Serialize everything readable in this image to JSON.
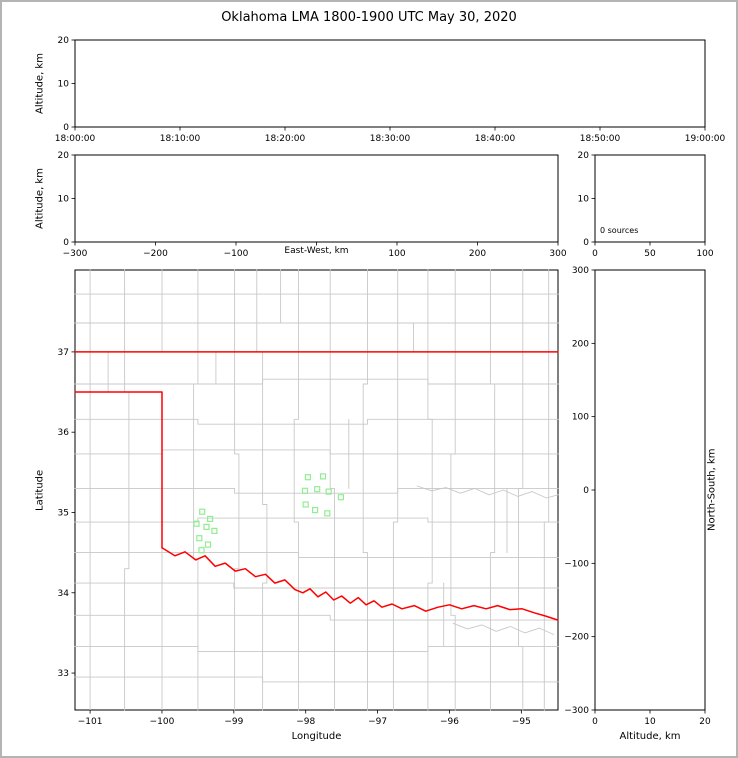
{
  "title": "Oklahoma LMA 1800-1900 UTC May 30, 2020",
  "colors": {
    "frame": "#b4b4b4",
    "axis": "#000000",
    "county": "#c8c8c8",
    "state": "#ff0000",
    "station": "#90EE90"
  },
  "chart_data": [
    {
      "id": "altitude-vs-time",
      "type": "scatter",
      "xlabel": "",
      "ylabel": "Altitude, km",
      "xlim": [
        0,
        3600
      ],
      "xticks": [
        0,
        600,
        1200,
        1800,
        2400,
        3000,
        3600
      ],
      "xtick_labels": [
        "18:00:00",
        "18:10:00",
        "18:20:00",
        "18:30:00",
        "18:40:00",
        "18:50:00",
        "19:00:00"
      ],
      "ylim": [
        0,
        20
      ],
      "yticks": [
        0,
        10,
        20
      ],
      "points": []
    },
    {
      "id": "altitude-vs-east-west",
      "type": "scatter",
      "xlabel": "East-West, km",
      "ylabel": "Altitude, km",
      "xlim": [
        -300,
        300
      ],
      "xticks": [
        -300,
        -200,
        -100,
        0,
        100,
        200,
        300
      ],
      "xtick_labels": [
        "−300",
        "−200",
        "−100",
        "",
        "100",
        "200",
        "300"
      ],
      "ylim": [
        0,
        20
      ],
      "yticks": [
        0,
        10,
        20
      ],
      "points": []
    },
    {
      "id": "source-histogram",
      "type": "line",
      "xlabel": "",
      "ylabel": "",
      "xlim": [
        0,
        100
      ],
      "xticks": [
        0,
        50,
        100
      ],
      "xtick_labels": [
        "0",
        "50",
        "100"
      ],
      "ylim": [
        0,
        20
      ],
      "yticks": [
        0,
        10,
        20
      ],
      "annotation": "0 sources",
      "points": []
    },
    {
      "id": "plan-view-map",
      "type": "scatter",
      "xlabel": "Longitude",
      "ylabel": "Latitude",
      "xlim": [
        -101.21,
        -94.49
      ],
      "xticks": [
        -101,
        -100,
        -99,
        -98,
        -97,
        -96,
        -95
      ],
      "xtick_labels": [
        "−101",
        "−100",
        "−99",
        "−98",
        "−97",
        "−96",
        "−95"
      ],
      "ylim": [
        32.54,
        38.02
      ],
      "yticks": [
        33,
        34,
        35,
        36,
        37
      ],
      "ytick_labels": [
        "33",
        "34",
        "35",
        "36",
        "37"
      ],
      "stations_lon_lat": [
        [
          -97.97,
          35.44
        ],
        [
          -97.76,
          35.45
        ],
        [
          -98.01,
          35.27
        ],
        [
          -97.84,
          35.29
        ],
        [
          -97.68,
          35.26
        ],
        [
          -97.51,
          35.19
        ],
        [
          -98.0,
          35.1
        ],
        [
          -97.87,
          35.03
        ],
        [
          -97.7,
          34.99
        ],
        [
          -99.44,
          35.01
        ],
        [
          -99.33,
          34.92
        ],
        [
          -99.52,
          34.86
        ],
        [
          -99.38,
          34.82
        ],
        [
          -99.27,
          34.77
        ],
        [
          -99.48,
          34.68
        ],
        [
          -99.36,
          34.6
        ],
        [
          -99.45,
          34.53
        ]
      ],
      "state_border": [
        [
          [
            -101.21,
            37.0
          ],
          [
            -94.49,
            37.0
          ]
        ],
        [
          [
            -101.21,
            36.5
          ],
          [
            -100.0,
            36.5
          ],
          [
            -100.0,
            34.56
          ]
        ],
        [
          [
            -100.0,
            34.56
          ],
          [
            -99.82,
            34.46
          ],
          [
            -99.68,
            34.51
          ],
          [
            -99.53,
            34.41
          ],
          [
            -99.4,
            34.46
          ],
          [
            -99.26,
            34.33
          ],
          [
            -99.12,
            34.37
          ],
          [
            -98.98,
            34.27
          ],
          [
            -98.84,
            34.3
          ],
          [
            -98.7,
            34.2
          ],
          [
            -98.56,
            34.23
          ],
          [
            -98.43,
            34.12
          ],
          [
            -98.29,
            34.16
          ],
          [
            -98.15,
            34.04
          ],
          [
            -98.04,
            34.0
          ],
          [
            -97.94,
            34.05
          ],
          [
            -97.83,
            33.95
          ],
          [
            -97.72,
            34.01
          ],
          [
            -97.61,
            33.91
          ],
          [
            -97.5,
            33.96
          ],
          [
            -97.38,
            33.87
          ],
          [
            -97.27,
            33.94
          ],
          [
            -97.16,
            33.85
          ],
          [
            -97.05,
            33.9
          ],
          [
            -96.94,
            33.82
          ],
          [
            -96.8,
            33.86
          ],
          [
            -96.66,
            33.8
          ],
          [
            -96.49,
            33.84
          ],
          [
            -96.33,
            33.77
          ],
          [
            -96.16,
            33.82
          ],
          [
            -96.0,
            33.85
          ],
          [
            -95.83,
            33.8
          ],
          [
            -95.66,
            33.84
          ],
          [
            -95.49,
            33.8
          ],
          [
            -95.33,
            33.84
          ],
          [
            -95.16,
            33.79
          ],
          [
            -94.99,
            33.8
          ],
          [
            -94.82,
            33.75
          ],
          [
            -94.66,
            33.71
          ],
          [
            -94.49,
            33.66
          ]
        ]
      ],
      "county_lines": [
        [
          [
            -101.0,
            38.02
          ],
          [
            -101.0,
            32.54
          ]
        ],
        [
          [
            -100.52,
            38.02
          ],
          [
            -100.52,
            36.5
          ],
          [
            -100.46,
            36.5
          ],
          [
            -100.46,
            34.3
          ],
          [
            -100.52,
            34.3
          ],
          [
            -100.52,
            32.54
          ]
        ],
        [
          [
            -100.0,
            38.02
          ],
          [
            -100.0,
            37.0
          ]
        ],
        [
          [
            -100.0,
            34.56
          ],
          [
            -100.0,
            32.54
          ]
        ],
        [
          [
            -99.5,
            38.02
          ],
          [
            -99.5,
            36.6
          ],
          [
            -99.56,
            36.6
          ],
          [
            -99.56,
            34.42
          ],
          [
            -99.5,
            34.42
          ],
          [
            -99.5,
            32.54
          ]
        ],
        [
          [
            -98.99,
            38.02
          ],
          [
            -98.99,
            35.73
          ],
          [
            -98.93,
            35.73
          ],
          [
            -98.93,
            34.3
          ],
          [
            -98.99,
            34.3
          ],
          [
            -98.99,
            32.54
          ]
        ],
        [
          [
            -98.68,
            38.02
          ],
          [
            -98.68,
            37.0
          ]
        ],
        [
          [
            -98.6,
            37.0
          ],
          [
            -98.6,
            35.1
          ],
          [
            -98.54,
            35.1
          ],
          [
            -98.54,
            34.12
          ],
          [
            -98.6,
            34.12
          ],
          [
            -98.6,
            32.54
          ]
        ],
        [
          [
            -98.1,
            38.02
          ],
          [
            -98.1,
            36.16
          ],
          [
            -98.16,
            36.16
          ],
          [
            -98.16,
            34.88
          ],
          [
            -98.1,
            34.88
          ],
          [
            -98.1,
            32.54
          ]
        ],
        [
          [
            -97.66,
            38.02
          ],
          [
            -97.66,
            35.3
          ],
          [
            -97.6,
            35.3
          ],
          [
            -97.6,
            32.54
          ]
        ],
        [
          [
            -97.14,
            38.02
          ],
          [
            -97.14,
            36.6
          ],
          [
            -97.2,
            36.6
          ],
          [
            -97.2,
            34.5
          ],
          [
            -97.14,
            34.5
          ],
          [
            -97.14,
            32.54
          ]
        ],
        [
          [
            -96.72,
            38.02
          ],
          [
            -96.72,
            34.88
          ],
          [
            -96.78,
            34.88
          ],
          [
            -96.78,
            32.54
          ]
        ],
        [
          [
            -96.3,
            38.02
          ],
          [
            -96.3,
            36.16
          ],
          [
            -96.24,
            36.16
          ],
          [
            -96.24,
            34.12
          ],
          [
            -96.3,
            34.12
          ],
          [
            -96.3,
            32.54
          ]
        ],
        [
          [
            -95.92,
            38.02
          ],
          [
            -95.92,
            35.73
          ],
          [
            -95.98,
            35.73
          ],
          [
            -95.98,
            33.72
          ],
          [
            -95.92,
            33.72
          ],
          [
            -95.92,
            32.54
          ]
        ],
        [
          [
            -95.43,
            38.02
          ],
          [
            -95.43,
            36.6
          ],
          [
            -95.37,
            36.6
          ],
          [
            -95.37,
            34.5
          ],
          [
            -95.43,
            34.5
          ],
          [
            -95.43,
            32.54
          ]
        ],
        [
          [
            -94.98,
            38.02
          ],
          [
            -94.98,
            35.3
          ],
          [
            -95.04,
            35.3
          ],
          [
            -95.04,
            33.33
          ],
          [
            -94.98,
            33.33
          ],
          [
            -94.98,
            32.54
          ]
        ],
        [
          [
            -94.62,
            38.02
          ],
          [
            -94.62,
            34.88
          ],
          [
            -94.68,
            34.88
          ],
          [
            -94.68,
            32.54
          ]
        ],
        [
          [
            -101.21,
            37.72
          ],
          [
            -94.49,
            37.72
          ]
        ],
        [
          [
            -101.21,
            37.36
          ],
          [
            -94.49,
            37.36
          ]
        ],
        [
          [
            -101.21,
            36.6
          ],
          [
            -98.6,
            36.6
          ],
          [
            -98.6,
            36.66
          ],
          [
            -96.3,
            36.66
          ],
          [
            -96.3,
            36.6
          ],
          [
            -94.49,
            36.6
          ]
        ],
        [
          [
            -101.21,
            36.16
          ],
          [
            -99.5,
            36.16
          ],
          [
            -99.5,
            36.1
          ],
          [
            -97.14,
            36.1
          ],
          [
            -97.14,
            36.16
          ],
          [
            -94.49,
            36.16
          ]
        ],
        [
          [
            -101.21,
            35.73
          ],
          [
            -100.0,
            35.73
          ],
          [
            -100.0,
            35.78
          ],
          [
            -97.66,
            35.78
          ],
          [
            -97.66,
            35.73
          ],
          [
            -94.49,
            35.73
          ]
        ],
        [
          [
            -101.21,
            35.3
          ],
          [
            -98.99,
            35.3
          ],
          [
            -98.99,
            35.24
          ],
          [
            -96.72,
            35.24
          ],
          [
            -96.72,
            35.3
          ],
          [
            -94.49,
            35.3
          ]
        ],
        [
          [
            -101.21,
            34.88
          ],
          [
            -99.5,
            34.88
          ],
          [
            -99.5,
            34.93
          ],
          [
            -96.3,
            34.93
          ],
          [
            -96.3,
            34.88
          ],
          [
            -94.49,
            34.88
          ]
        ],
        [
          [
            -101.21,
            34.5
          ],
          [
            -98.1,
            34.5
          ],
          [
            -98.1,
            34.44
          ],
          [
            -94.49,
            34.44
          ]
        ],
        [
          [
            -101.21,
            34.12
          ],
          [
            -99.0,
            34.12
          ],
          [
            -99.0,
            34.06
          ],
          [
            -94.49,
            34.06
          ]
        ],
        [
          [
            -101.21,
            33.72
          ],
          [
            -97.66,
            33.72
          ],
          [
            -97.66,
            33.66
          ],
          [
            -94.49,
            33.66
          ]
        ],
        [
          [
            -101.21,
            33.33
          ],
          [
            -99.5,
            33.33
          ],
          [
            -99.5,
            33.27
          ],
          [
            -96.3,
            33.27
          ],
          [
            -96.3,
            33.33
          ],
          [
            -94.49,
            33.33
          ]
        ],
        [
          [
            -101.21,
            32.95
          ],
          [
            -98.6,
            32.95
          ],
          [
            -98.6,
            32.89
          ],
          [
            -94.49,
            32.89
          ]
        ],
        [
          [
            -99.25,
            37.0
          ],
          [
            -99.25,
            36.6
          ]
        ],
        [
          [
            -97.4,
            36.16
          ],
          [
            -97.4,
            35.3
          ]
        ],
        [
          [
            -96.08,
            34.12
          ],
          [
            -96.08,
            33.33
          ]
        ],
        [
          [
            -95.2,
            35.3
          ],
          [
            -95.2,
            34.5
          ]
        ],
        [
          [
            -100.75,
            36.5
          ],
          [
            -100.75,
            37.0
          ]
        ],
        [
          [
            -98.35,
            38.02
          ],
          [
            -98.35,
            37.36
          ]
        ],
        [
          [
            -96.5,
            37.36
          ],
          [
            -96.5,
            37.0
          ]
        ]
      ],
      "rivers": [
        [
          [
            -96.45,
            35.33
          ],
          [
            -96.25,
            35.27
          ],
          [
            -96.05,
            35.31
          ],
          [
            -95.85,
            35.24
          ],
          [
            -95.65,
            35.3
          ],
          [
            -95.45,
            35.22
          ],
          [
            -95.25,
            35.28
          ],
          [
            -95.05,
            35.2
          ],
          [
            -94.85,
            35.26
          ],
          [
            -94.65,
            35.18
          ],
          [
            -94.49,
            35.22
          ]
        ],
        [
          [
            -95.95,
            33.62
          ],
          [
            -95.75,
            33.55
          ],
          [
            -95.55,
            33.6
          ],
          [
            -95.35,
            33.52
          ],
          [
            -95.15,
            33.58
          ],
          [
            -94.95,
            33.5
          ],
          [
            -94.75,
            33.56
          ],
          [
            -94.55,
            33.48
          ]
        ]
      ]
    },
    {
      "id": "north-south-vs-altitude",
      "type": "scatter",
      "xlabel": "Altitude, km",
      "ylabel": "North-South, km",
      "xlim": [
        0,
        20
      ],
      "xticks": [
        0,
        10,
        20
      ],
      "xtick_labels": [
        "0",
        "10",
        "20"
      ],
      "ylim": [
        -300,
        300
      ],
      "yticks": [
        -300,
        -200,
        -100,
        0,
        100,
        200,
        300
      ],
      "ytick_labels": [
        "−300",
        "−200",
        "−100",
        "0",
        "100",
        "200",
        "300"
      ],
      "points": []
    }
  ]
}
